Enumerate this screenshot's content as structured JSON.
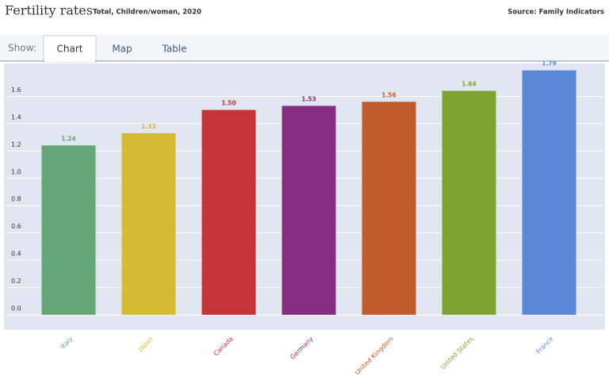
{
  "chart_data": {
    "type": "bar",
    "title": "Fertility rates",
    "subtitle": "Total, Children/woman, 2020",
    "source": "Source: Family Indicators",
    "tabs": {
      "label": "Show:",
      "items": [
        "Chart",
        "Map",
        "Table"
      ]
    },
    "categories": [
      "Italy",
      "Japan",
      "Canada",
      "Germany",
      "United Kingdom",
      "United States",
      "France"
    ],
    "values": [
      1.24,
      1.33,
      1.5,
      1.53,
      1.56,
      1.64,
      1.79
    ],
    "value_labels": [
      "1.24",
      "1.33",
      "1.50",
      "1.53",
      "1.56",
      "1.64",
      "1.79"
    ],
    "colors": [
      "#64a877",
      "#d4bb32",
      "#c53538",
      "#862d82",
      "#c25b2c",
      "#7fa332",
      "#5b88d6"
    ],
    "ylim": [
      0,
      1.8
    ],
    "yticks": [
      {
        "value": 0,
        "label": "0.0"
      },
      0.2,
      0.4,
      0.6,
      0.8,
      {
        "value": 1,
        "label": "1.0"
      },
      1.2,
      1.4,
      1.6
    ],
    "grid": true
  }
}
